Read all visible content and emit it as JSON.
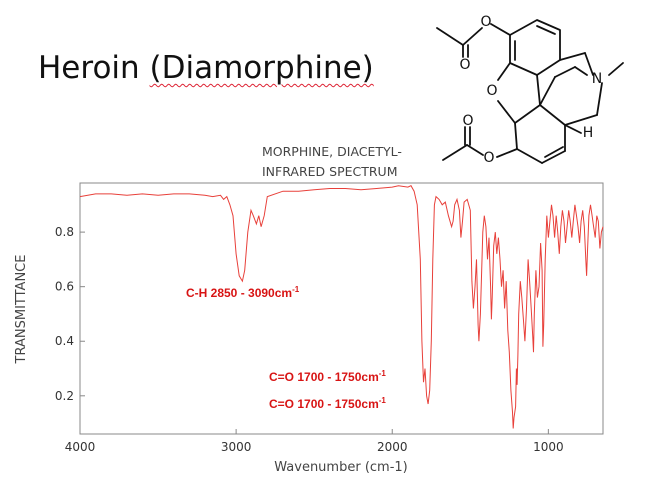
{
  "slide": {
    "title_main": "Heroin ",
    "title_paren": "(Diamorphine)",
    "spectrum_title_line1": "MORPHINE, DIACETYL-",
    "spectrum_title_line2": "INFRARED SPECTRUM",
    "annotations": [
      {
        "label": "C-H 2850 - 3090cm",
        "sup": "-1"
      },
      {
        "label": "C=O 1700 - 1750cm",
        "sup": "-1"
      },
      {
        "label": "C=O 1700 - 1750cm",
        "sup": "-1"
      }
    ],
    "structure_labels": {
      "oxygen": "O",
      "nitrogen": "N",
      "hydrogen": "H"
    }
  },
  "chart_data": {
    "type": "line",
    "title": "MORPHINE, DIACETYL- INFRARED SPECTRUM",
    "xlabel": "Wavenumber (cm-1)",
    "ylabel": "TRANSMITTANCE",
    "xlim": [
      4000,
      650
    ],
    "ylim": [
      0.06,
      0.98
    ],
    "xticks": [
      4000,
      3000,
      2000,
      1000
    ],
    "yticks": [
      0.2,
      0.4,
      0.6,
      0.8
    ],
    "line_color": "#e8403a",
    "series": [
      {
        "points": [
          [
            4000,
            0.93
          ],
          [
            3900,
            0.94
          ],
          [
            3800,
            0.94
          ],
          [
            3700,
            0.935
          ],
          [
            3600,
            0.94
          ],
          [
            3500,
            0.935
          ],
          [
            3400,
            0.94
          ],
          [
            3300,
            0.94
          ],
          [
            3200,
            0.935
          ],
          [
            3150,
            0.93
          ],
          [
            3100,
            0.935
          ],
          [
            3080,
            0.92
          ],
          [
            3060,
            0.93
          ],
          [
            3040,
            0.9
          ],
          [
            3020,
            0.86
          ],
          [
            3000,
            0.72
          ],
          [
            2980,
            0.64
          ],
          [
            2960,
            0.62
          ],
          [
            2945,
            0.66
          ],
          [
            2925,
            0.8
          ],
          [
            2905,
            0.88
          ],
          [
            2890,
            0.86
          ],
          [
            2870,
            0.83
          ],
          [
            2855,
            0.86
          ],
          [
            2840,
            0.82
          ],
          [
            2820,
            0.86
          ],
          [
            2800,
            0.93
          ],
          [
            2700,
            0.95
          ],
          [
            2600,
            0.95
          ],
          [
            2500,
            0.955
          ],
          [
            2400,
            0.96
          ],
          [
            2300,
            0.96
          ],
          [
            2200,
            0.955
          ],
          [
            2100,
            0.96
          ],
          [
            2000,
            0.965
          ],
          [
            1960,
            0.97
          ],
          [
            1900,
            0.965
          ],
          [
            1880,
            0.97
          ],
          [
            1860,
            0.95
          ],
          [
            1840,
            0.9
          ],
          [
            1820,
            0.7
          ],
          [
            1810,
            0.4
          ],
          [
            1800,
            0.25
          ],
          [
            1790,
            0.3
          ],
          [
            1780,
            0.2
          ],
          [
            1770,
            0.17
          ],
          [
            1760,
            0.22
          ],
          [
            1750,
            0.4
          ],
          [
            1740,
            0.7
          ],
          [
            1730,
            0.9
          ],
          [
            1720,
            0.93
          ],
          [
            1700,
            0.92
          ],
          [
            1680,
            0.9
          ],
          [
            1660,
            0.91
          ],
          [
            1640,
            0.86
          ],
          [
            1620,
            0.82
          ],
          [
            1610,
            0.84
          ],
          [
            1600,
            0.9
          ],
          [
            1585,
            0.92
          ],
          [
            1570,
            0.88
          ],
          [
            1560,
            0.78
          ],
          [
            1550,
            0.84
          ],
          [
            1540,
            0.91
          ],
          [
            1520,
            0.92
          ],
          [
            1500,
            0.88
          ],
          [
            1490,
            0.62
          ],
          [
            1480,
            0.52
          ],
          [
            1470,
            0.6
          ],
          [
            1460,
            0.7
          ],
          [
            1450,
            0.46
          ],
          [
            1445,
            0.4
          ],
          [
            1435,
            0.5
          ],
          [
            1420,
            0.8
          ],
          [
            1410,
            0.86
          ],
          [
            1400,
            0.82
          ],
          [
            1390,
            0.7
          ],
          [
            1380,
            0.78
          ],
          [
            1370,
            0.6
          ],
          [
            1365,
            0.48
          ],
          [
            1360,
            0.56
          ],
          [
            1350,
            0.75
          ],
          [
            1340,
            0.8
          ],
          [
            1330,
            0.72
          ],
          [
            1320,
            0.78
          ],
          [
            1310,
            0.7
          ],
          [
            1300,
            0.6
          ],
          [
            1290,
            0.66
          ],
          [
            1280,
            0.52
          ],
          [
            1270,
            0.62
          ],
          [
            1260,
            0.44
          ],
          [
            1250,
            0.36
          ],
          [
            1240,
            0.22
          ],
          [
            1230,
            0.14
          ],
          [
            1225,
            0.08
          ],
          [
            1220,
            0.12
          ],
          [
            1210,
            0.16
          ],
          [
            1205,
            0.3
          ],
          [
            1200,
            0.24
          ],
          [
            1195,
            0.35
          ],
          [
            1190,
            0.5
          ],
          [
            1180,
            0.62
          ],
          [
            1170,
            0.56
          ],
          [
            1160,
            0.48
          ],
          [
            1150,
            0.4
          ],
          [
            1140,
            0.52
          ],
          [
            1130,
            0.7
          ],
          [
            1120,
            0.62
          ],
          [
            1110,
            0.52
          ],
          [
            1100,
            0.42
          ],
          [
            1095,
            0.36
          ],
          [
            1090,
            0.5
          ],
          [
            1080,
            0.66
          ],
          [
            1070,
            0.56
          ],
          [
            1060,
            0.6
          ],
          [
            1050,
            0.76
          ],
          [
            1040,
            0.66
          ],
          [
            1035,
            0.38
          ],
          [
            1030,
            0.46
          ],
          [
            1020,
            0.7
          ],
          [
            1010,
            0.86
          ],
          [
            1000,
            0.78
          ],
          [
            990,
            0.84
          ],
          [
            980,
            0.9
          ],
          [
            970,
            0.86
          ],
          [
            960,
            0.78
          ],
          [
            950,
            0.86
          ],
          [
            940,
            0.8
          ],
          [
            930,
            0.72
          ],
          [
            920,
            0.82
          ],
          [
            910,
            0.88
          ],
          [
            900,
            0.84
          ],
          [
            890,
            0.76
          ],
          [
            880,
            0.82
          ],
          [
            870,
            0.88
          ],
          [
            860,
            0.84
          ],
          [
            850,
            0.78
          ],
          [
            840,
            0.84
          ],
          [
            830,
            0.9
          ],
          [
            820,
            0.86
          ],
          [
            810,
            0.82
          ],
          [
            800,
            0.76
          ],
          [
            790,
            0.84
          ],
          [
            780,
            0.88
          ],
          [
            770,
            0.82
          ],
          [
            760,
            0.7
          ],
          [
            755,
            0.64
          ],
          [
            750,
            0.72
          ],
          [
            740,
            0.86
          ],
          [
            730,
            0.9
          ],
          [
            720,
            0.86
          ],
          [
            710,
            0.82
          ],
          [
            700,
            0.78
          ],
          [
            690,
            0.86
          ],
          [
            680,
            0.84
          ],
          [
            670,
            0.74
          ],
          [
            660,
            0.8
          ],
          [
            650,
            0.82
          ]
        ]
      }
    ]
  }
}
